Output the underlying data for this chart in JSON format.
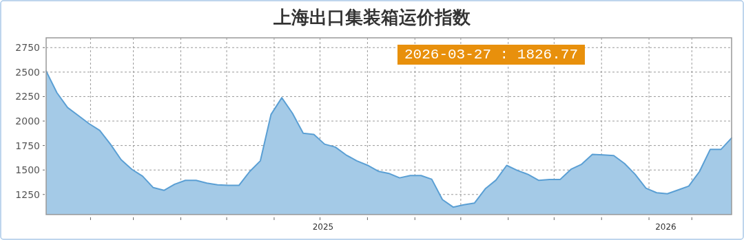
{
  "chart_data": {
    "type": "area",
    "title": "上海出口集装箱运价指数",
    "x": [
      "2025-01-03",
      "2025-01-10",
      "2025-01-17",
      "2025-01-24",
      "2025-01-31",
      "2025-02-07",
      "2025-02-14",
      "2025-02-21",
      "2025-02-28",
      "2025-03-07",
      "2025-03-14",
      "2025-03-21",
      "2025-03-28",
      "2025-04-04",
      "2025-04-11",
      "2025-04-18",
      "2025-04-25",
      "2025-05-02",
      "2025-05-09",
      "2025-05-16",
      "2025-05-23",
      "2025-05-30",
      "2025-06-06",
      "2025-06-13",
      "2025-06-20",
      "2025-06-27",
      "2025-07-04",
      "2025-07-11",
      "2025-07-18",
      "2025-07-25",
      "2025-08-01",
      "2025-08-08",
      "2025-08-15",
      "2025-08-22",
      "2025-08-29",
      "2025-09-05",
      "2025-09-12",
      "2025-09-19",
      "2025-09-26",
      "2025-10-03",
      "2025-10-10",
      "2025-10-17",
      "2025-10-24",
      "2025-10-31",
      "2025-11-07",
      "2025-11-14",
      "2025-11-21",
      "2025-11-28",
      "2025-12-05",
      "2025-12-12",
      "2025-12-19",
      "2025-12-26",
      "2026-01-02",
      "2026-01-09",
      "2026-01-16",
      "2026-01-23",
      "2026-01-30",
      "2026-02-06",
      "2026-02-13",
      "2026-02-20",
      "2026-02-27",
      "2026-03-06",
      "2026-03-13",
      "2026-03-20",
      "2026-03-27"
    ],
    "series": [
      {
        "color": "#5a9fd4",
        "values": [
          2510,
          2290,
          2138,
          2056,
          1974,
          1904,
          1764,
          1605,
          1507,
          1437,
          1320,
          1292,
          1355,
          1394,
          1394,
          1366,
          1348,
          1343,
          1343,
          1484,
          1594,
          2068,
          2238,
          2079,
          1876,
          1864,
          1764,
          1734,
          1654,
          1594,
          1549,
          1488,
          1465,
          1420,
          1444,
          1444,
          1406,
          1198,
          1121,
          1145,
          1163,
          1308,
          1397,
          1547,
          1495,
          1455,
          1394,
          1404,
          1404,
          1507,
          1559,
          1659,
          1654,
          1647,
          1566,
          1455,
          1315,
          1268,
          1257,
          1296,
          1336,
          1484,
          1710,
          1710,
          1827
        ]
      }
    ],
    "xlim": [
      "2025-01-03",
      "2026-03-27"
    ],
    "ylim": [
      1045,
      2850
    ],
    "xticks": [
      {
        "value": "2025-02-01",
        "label": null
      },
      {
        "value": "2025-03-01",
        "label": null
      },
      {
        "value": "2025-04-01",
        "label": null
      },
      {
        "value": "2025-05-01",
        "label": null
      },
      {
        "value": "2025-06-01",
        "label": null
      },
      {
        "value": "2025-07-01",
        "label": null
      },
      {
        "value": "2025-07-03",
        "label": "2025"
      },
      {
        "value": "2025-08-01",
        "label": null
      },
      {
        "value": "2025-09-01",
        "label": null
      },
      {
        "value": "2025-10-01",
        "label": null
      },
      {
        "value": "2025-11-01",
        "label": null
      },
      {
        "value": "2025-12-01",
        "label": null
      },
      {
        "value": "2026-01-01",
        "label": null
      },
      {
        "value": "2026-02-01",
        "label": null
      },
      {
        "value": "2026-02-12",
        "label": "2026"
      },
      {
        "value": "2026-03-01",
        "label": null
      }
    ],
    "yticks": [
      1250,
      1500,
      1750,
      2000,
      2250,
      2500,
      2750
    ],
    "grid": true,
    "line_style": "solid",
    "marker": "none",
    "annotations": [
      "2026-03-27 : 1826.77"
    ]
  }
}
